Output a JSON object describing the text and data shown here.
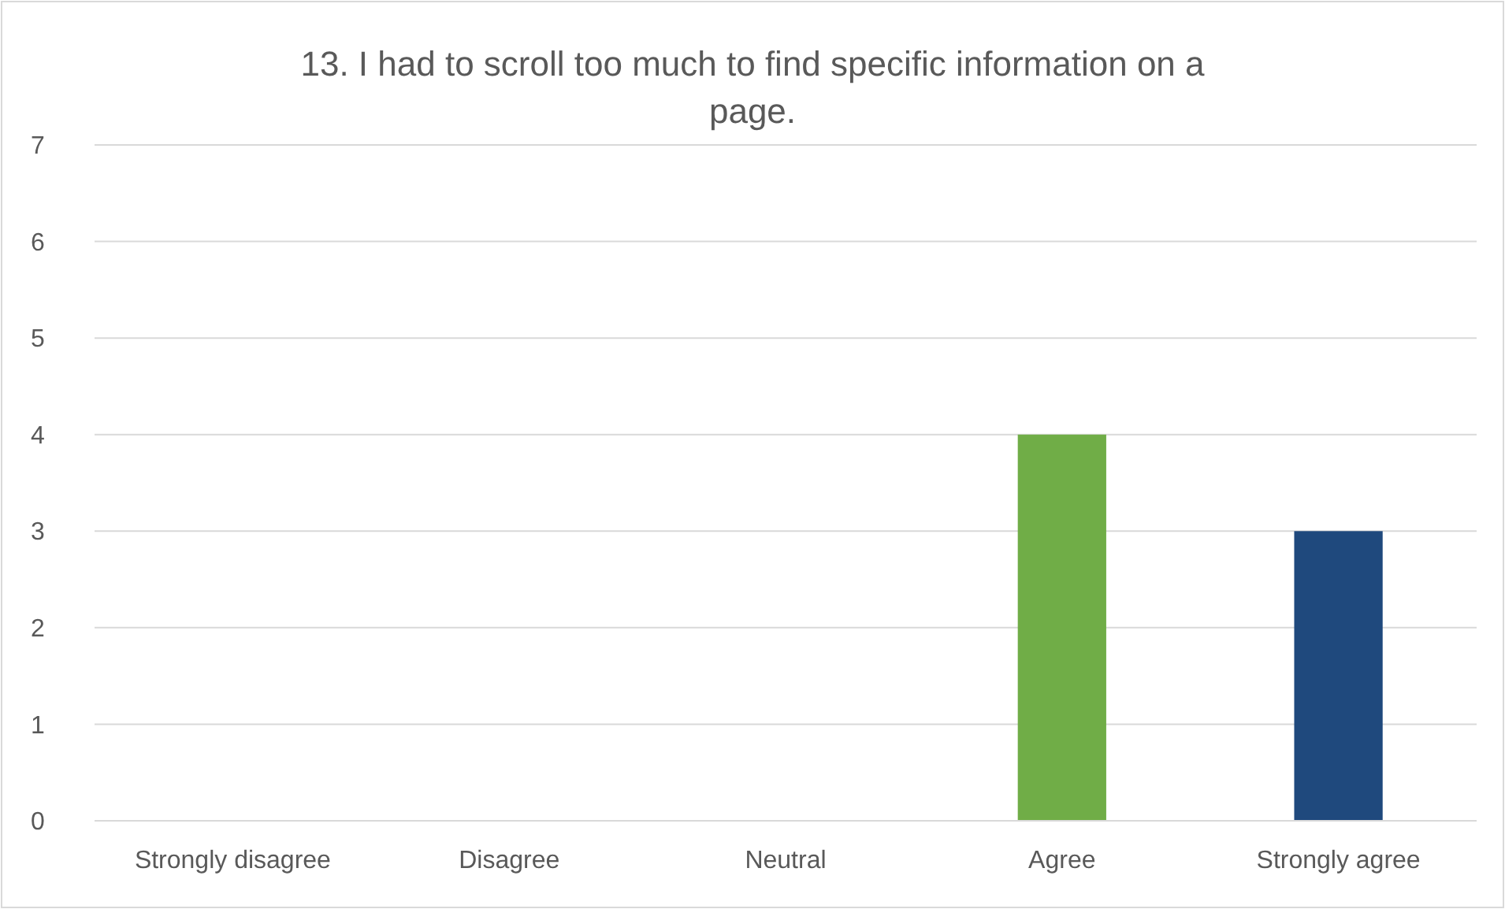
{
  "chart_data": {
    "type": "bar",
    "title": "13. I had to scroll too much to find specific information on a page.",
    "categories": [
      "Strongly disagree",
      "Disagree",
      "Neutral",
      "Agree",
      "Strongly agree"
    ],
    "values": [
      0,
      0,
      0,
      4,
      3
    ],
    "colors": [
      null,
      null,
      null,
      "#70ad47",
      "#1f497d"
    ],
    "ylim": [
      0,
      7
    ],
    "yticks": [
      0,
      1,
      2,
      3,
      4,
      5,
      6,
      7
    ],
    "grid": "y"
  }
}
